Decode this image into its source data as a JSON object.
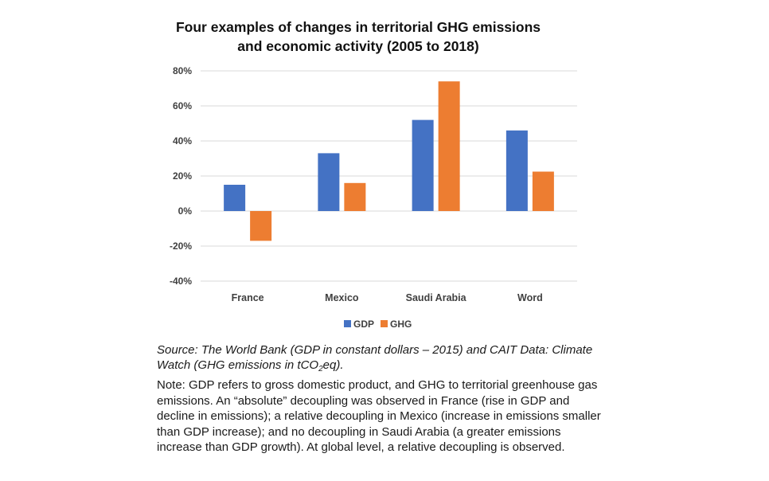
{
  "chart_data": {
    "type": "bar",
    "title": "Four examples of changes in territorial GHG emissions and economic activity (2005 to 2018)",
    "title_lines": [
      "Four examples of changes in territorial GHG emissions",
      "and economic activity (2005 to 2018)"
    ],
    "categories": [
      "France",
      "Mexico",
      "Saudi Arabia",
      "Word"
    ],
    "series": [
      {
        "name": "GDP",
        "values": [
          15,
          33,
          52,
          46
        ],
        "color": "#4472c4"
      },
      {
        "name": "GHG",
        "values": [
          -17,
          16,
          74,
          22.5
        ],
        "color": "#ed7d31"
      }
    ],
    "ylim": [
      -40,
      80
    ],
    "yticks": [
      -40,
      -20,
      0,
      20,
      40,
      60,
      80
    ],
    "ytick_labels": [
      "-40%",
      "-20%",
      "0%",
      "20%",
      "40%",
      "60%",
      "80%"
    ],
    "xlabel": "",
    "ylabel": "",
    "grid": true,
    "legend_position": "bottom"
  },
  "source": {
    "prefix": "Source: The World Bank (GDP in constant dollars – 2015) and CAIT Data: Climate Watch (GHG emissions in tCO",
    "subscript": "2",
    "suffix": "eq)."
  },
  "note": "Note: GDP refers to gross domestic product, and GHG to territorial greenhouse gas emissions. An “absolute” decoupling was observed in France (rise in GDP and decline in emissions); a relative decoupling in Mexico (increase in emissions smaller than GDP increase); and no decoupling in Saudi Arabia (a greater emissions increase than GDP growth). At global level, a relative decoupling is observed."
}
